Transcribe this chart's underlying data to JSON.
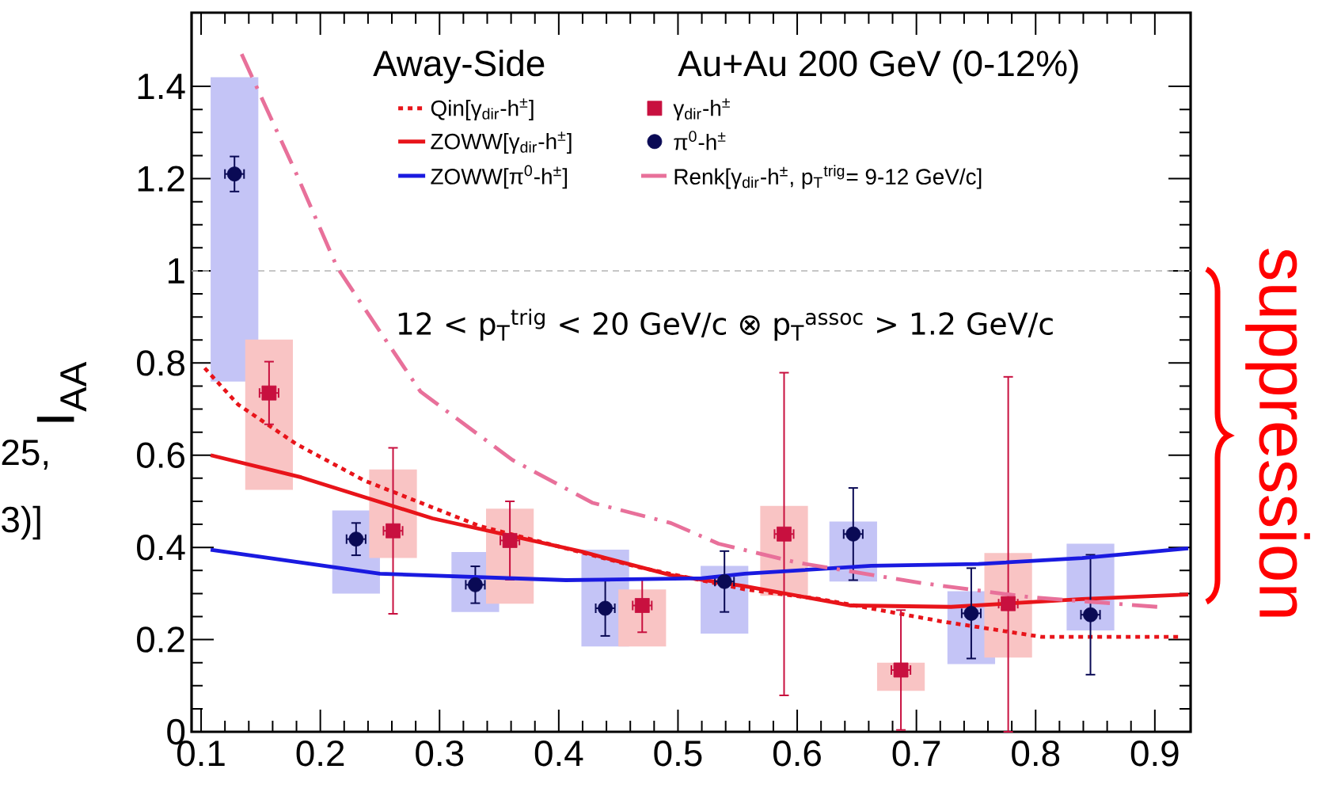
{
  "chart_data": {
    "type": "scatter",
    "ylabel": "I$_{AA}$",
    "xlim": [
      0.092,
      0.93
    ],
    "xticks": [
      0.1,
      0.2,
      0.3,
      0.4,
      0.5,
      0.6,
      0.7,
      0.8,
      0.9
    ],
    "ylim": [
      0,
      1.56
    ],
    "yticks": [
      0,
      0.2,
      0.4,
      0.6,
      0.8,
      1,
      1.2,
      1.4
    ],
    "legend": "top",
    "ref_lines": [
      {
        "axis": "y",
        "value": 1,
        "color": "#b4b4b4",
        "line_style": "dashed"
      }
    ],
    "annotations": [
      "Away-Side",
      "Au+Au 200 GeV (0-12%)",
      "12 < p$_{T}$$^{trig}$ < 20 GeV/c ⊗ p$_{T}$$^{assoc}$ > 1.2 GeV/c",
      "suppression",
      "25,",
      "3)]"
    ],
    "series": [
      {
        "type": "bar",
        "color": "#c4c4f6",
        "x": [
          0.128,
          0.23,
          0.33,
          0.439,
          0.539,
          0.647,
          0.746,
          0.846
        ],
        "base": [
          0.76,
          0.3,
          0.26,
          0.185,
          0.213,
          0.326,
          0.147,
          0.22
        ],
        "values": [
          0.66,
          0.18,
          0.13,
          0.21,
          0.147,
          0.13,
          0.158,
          0.188
        ]
      },
      {
        "type": "bar",
        "color": "#f9c4c4",
        "x": [
          0.157,
          0.261,
          0.359,
          0.47,
          0.589,
          0.687,
          0.777
        ],
        "base": [
          0.525,
          0.377,
          0.278,
          0.185,
          0.295,
          0.089,
          0.161
        ],
        "values": [
          0.326,
          0.192,
          0.206,
          0.124,
          0.195,
          0.061,
          0.227
        ]
      },
      {
        "type": "line",
        "name": "Qin[γ$_{dir}$-h$^{±}$]",
        "color": "#e8141a",
        "line_style": "dotted",
        "x": [
          0.103,
          0.131,
          0.18,
          0.237,
          0.334,
          0.467,
          0.556,
          0.619,
          0.72,
          0.805,
          0.922
        ],
        "values": [
          0.789,
          0.71,
          0.624,
          0.545,
          0.446,
          0.357,
          0.309,
          0.288,
          0.24,
          0.206,
          0.206
        ]
      },
      {
        "name": "γ$_{dir}$-h$^{±}$",
        "color": "#c8103f",
        "marker": "square",
        "x": [
          0.157,
          0.261,
          0.359,
          0.47,
          0.589,
          0.687,
          0.777
        ],
        "values": [
          0.735,
          0.436,
          0.415,
          0.274,
          0.429,
          0.134,
          0.278
        ],
        "errors": [
          0.068,
          0.18,
          0.085,
          0.058,
          0.35,
          0.13,
          [
            0,
            0.77
          ]
        ],
        "xerrors": [
          0.008,
          0.008,
          0.008,
          0.008,
          0.008,
          0.008,
          0.008
        ]
      },
      {
        "type": "line",
        "name": "ZOWW[γ$_{dir}$-h$^{±}$]",
        "color": "#e8141a",
        "line_style": "solid",
        "x": [
          0.108,
          0.184,
          0.294,
          0.419,
          0.494,
          0.556,
          0.645,
          0.729,
          0.839,
          0.928
        ],
        "values": [
          0.6,
          0.552,
          0.463,
          0.391,
          0.34,
          0.316,
          0.274,
          0.271,
          0.288,
          0.298
        ]
      },
      {
        "name": "π$^{0}$-h$^{±}$",
        "color": "#0a0a55",
        "marker": "circle",
        "x": [
          0.128,
          0.23,
          0.33,
          0.439,
          0.539,
          0.647,
          0.746,
          0.846
        ],
        "values": [
          1.21,
          0.418,
          0.319,
          0.268,
          0.326,
          0.429,
          0.257,
          0.254
        ],
        "errors": [
          0.038,
          0.035,
          0.04,
          0.06,
          0.066,
          0.1,
          0.098,
          0.13
        ],
        "xerrors": [
          0.008,
          0.008,
          0.008,
          0.008,
          0.008,
          0.008,
          0.008,
          0.008
        ]
      },
      {
        "type": "line",
        "name": "ZOWW[π$^{0}$-h$^{±}$]",
        "color": "#1a1ae0",
        "line_style": "solid",
        "x": [
          0.108,
          0.25,
          0.406,
          0.52,
          0.556,
          0.662,
          0.752,
          0.839,
          0.928
        ],
        "values": [
          0.395,
          0.343,
          0.329,
          0.333,
          0.343,
          0.36,
          0.364,
          0.377,
          0.398
        ]
      },
      {
        "type": "line",
        "name": "Renk[γ$_{dir}$-h$^{±}$, p$_{T}$$^{trig}$= 9-12 GeV/c]",
        "color": "#e8709a",
        "line_style": "dashdot",
        "x": [
          0.134,
          0.18,
          0.214,
          0.254,
          0.284,
          0.361,
          0.428,
          0.494,
          0.534,
          0.6,
          0.706,
          0.795,
          0.902
        ],
        "values": [
          1.47,
          1.21,
          1.008,
          0.853,
          0.738,
          0.59,
          0.497,
          0.453,
          0.408,
          0.367,
          0.322,
          0.292,
          0.271
        ]
      }
    ]
  }
}
